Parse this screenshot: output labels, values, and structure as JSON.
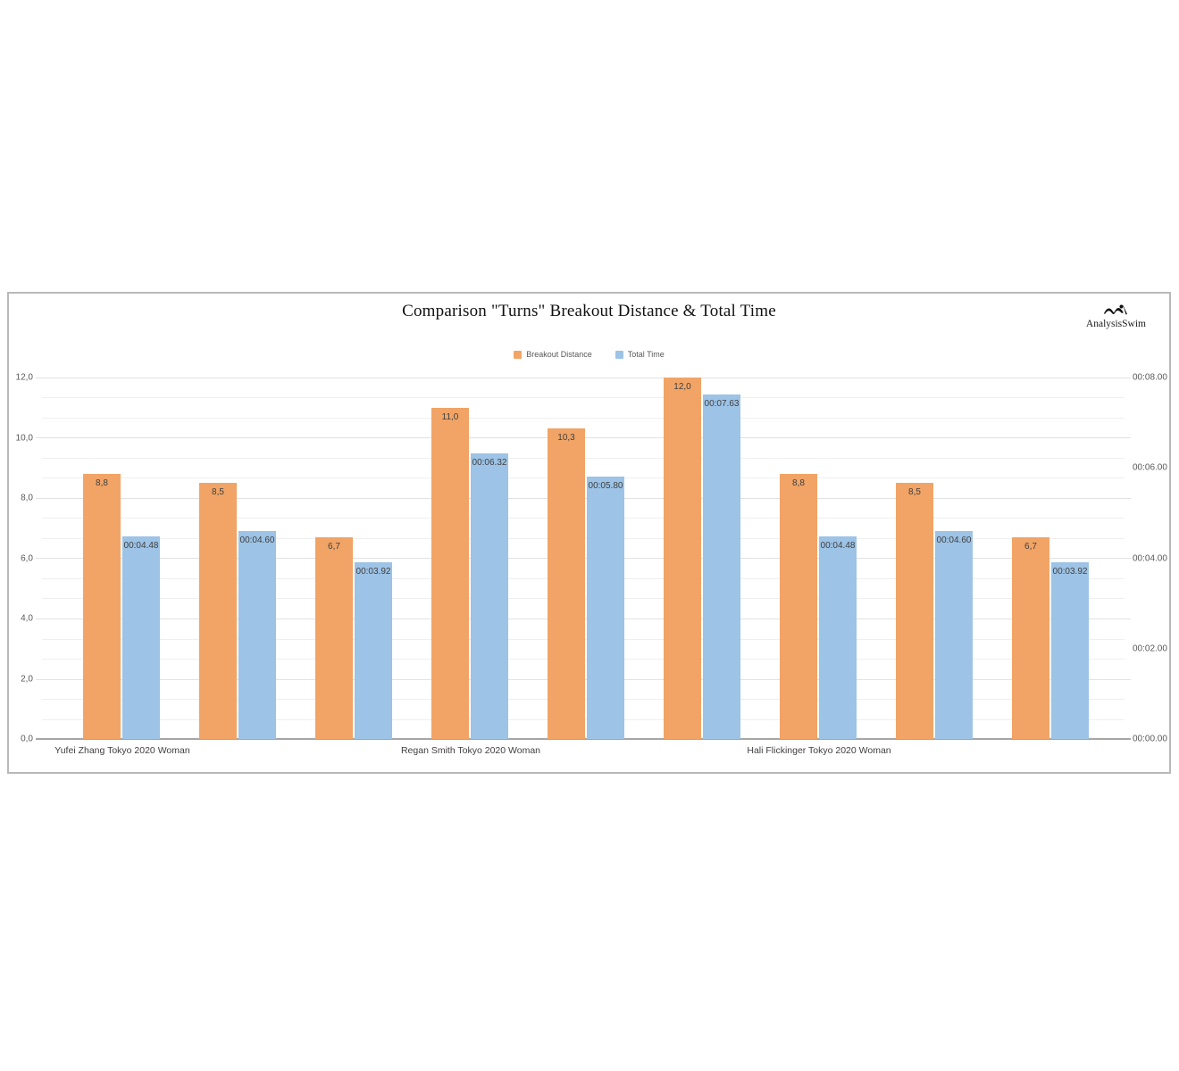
{
  "header": {
    "title": "Comparison \"Turns\" Breakout Distance & Total Time",
    "brand": "AnalysisSwim"
  },
  "chart_data": {
    "type": "bar",
    "title": "Comparison \"Turns\" Breakout Distance & Total Time",
    "legend_position": "top-center",
    "grid": true,
    "categories": [
      "Yufei Zhang Tokyo 2020 Woman",
      "",
      "",
      "Regan Smith Tokyo 2020 Woman",
      "",
      "",
      "Hali Flickinger Tokyo 2020 Woman",
      "",
      ""
    ],
    "series": [
      {
        "name": "Breakout Distance",
        "axis": "left",
        "color": "#F1A466",
        "values": [
          8.8,
          8.5,
          6.7,
          11.0,
          10.3,
          12.0,
          8.8,
          8.5,
          6.7
        ],
        "value_labels": [
          "8,8",
          "8,5",
          "6,7",
          "11,0",
          "10,3",
          "12,0",
          "8,8",
          "8,5",
          "6,7"
        ]
      },
      {
        "name": "Total Time",
        "axis": "right",
        "color": "#9DC3E6",
        "values": [
          4.48,
          4.6,
          3.92,
          6.32,
          5.8,
          7.63,
          4.48,
          4.6,
          3.92
        ],
        "value_labels": [
          "00:04.48",
          "00:04.60",
          "00:03.92",
          "00:06.32",
          "00:05.80",
          "00:07.63",
          "00:04.48",
          "00:04.60",
          "00:03.92"
        ]
      }
    ],
    "left_axis": {
      "min": 0,
      "max": 12,
      "minor_step": 0.6666667,
      "major_step": 2,
      "ticks": [
        {
          "v": 0,
          "label": "0,0"
        },
        {
          "v": 2,
          "label": "2,0"
        },
        {
          "v": 4,
          "label": "4,0"
        },
        {
          "v": 6,
          "label": "6,0"
        },
        {
          "v": 8,
          "label": "8,0"
        },
        {
          "v": 10,
          "label": "10,0"
        },
        {
          "v": 12,
          "label": "12,0"
        }
      ]
    },
    "right_axis": {
      "min": 0,
      "max": 8,
      "ticks": [
        {
          "v": 0,
          "label": "00:00.00"
        },
        {
          "v": 2,
          "label": "00:02.00"
        },
        {
          "v": 4,
          "label": "00:04.00"
        },
        {
          "v": 6,
          "label": "00:06.00"
        },
        {
          "v": 8,
          "label": "00:08.00"
        }
      ]
    }
  }
}
